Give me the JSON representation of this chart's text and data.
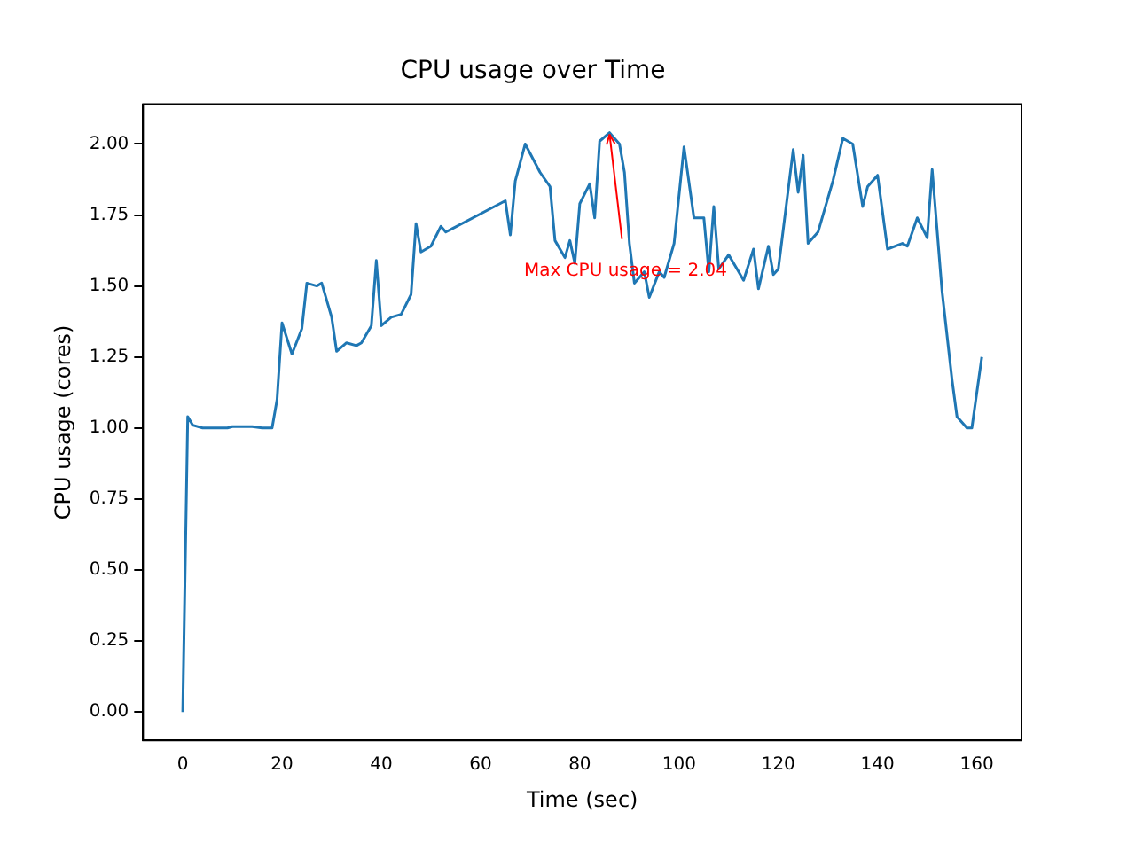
{
  "chart_data": {
    "type": "line",
    "title": "CPU usage over Time",
    "xlabel": "Time (sec)",
    "ylabel": "CPU usage (cores)",
    "x": [
      0,
      1,
      2,
      4,
      8,
      9,
      10,
      14,
      16,
      18,
      19,
      20,
      22,
      24,
      25,
      27,
      28,
      30,
      31,
      33,
      35,
      36,
      38,
      39,
      40,
      42,
      44,
      46,
      47,
      48,
      50,
      52,
      53,
      65,
      66,
      67,
      69,
      72,
      74,
      75,
      77,
      78,
      79,
      80,
      82,
      83,
      84,
      86,
      88,
      89,
      90,
      91,
      93,
      94,
      96,
      97,
      99,
      101,
      103,
      105,
      106,
      107,
      108,
      110,
      112,
      113,
      115,
      116,
      118,
      119,
      120,
      123,
      124,
      125,
      126,
      128,
      131,
      133,
      135,
      137,
      138,
      140,
      142,
      145,
      146,
      148,
      150,
      151,
      153,
      155,
      156,
      158,
      159,
      161
    ],
    "series": [
      {
        "color": "#1f77b4",
        "values": [
          0,
          1.04,
          1.01,
          1.0,
          1.0,
          1.0,
          1.005,
          1.005,
          1.0,
          1.0,
          1.1,
          1.37,
          1.26,
          1.35,
          1.51,
          1.5,
          1.51,
          1.39,
          1.27,
          1.3,
          1.29,
          1.3,
          1.36,
          1.59,
          1.36,
          1.39,
          1.4,
          1.47,
          1.72,
          1.62,
          1.64,
          1.71,
          1.69,
          1.8,
          1.68,
          1.87,
          2.0,
          1.9,
          1.85,
          1.66,
          1.6,
          1.66,
          1.58,
          1.79,
          1.86,
          1.74,
          2.01,
          2.04,
          2.0,
          1.9,
          1.65,
          1.51,
          1.55,
          1.46,
          1.55,
          1.53,
          1.65,
          1.99,
          1.74,
          1.74,
          1.55,
          1.78,
          1.56,
          1.61,
          1.55,
          1.52,
          1.63,
          1.49,
          1.64,
          1.54,
          1.56,
          1.98,
          1.83,
          1.96,
          1.65,
          1.69,
          1.87,
          2.02,
          2.0,
          1.78,
          1.85,
          1.89,
          1.63,
          1.65,
          1.64,
          1.74,
          1.67,
          1.91,
          1.48,
          1.17,
          1.04,
          1.0,
          1.0,
          1.25
        ]
      }
    ],
    "xlim": [
      -8,
      169
    ],
    "xticks": [
      0,
      20,
      40,
      60,
      80,
      100,
      120,
      140,
      160
    ],
    "ylim": [
      -0.1,
      2.14
    ],
    "yticks": [
      {
        "value": 0,
        "label": "0.00"
      },
      {
        "value": 0.25,
        "label": "0.25"
      },
      {
        "value": 0.5,
        "label": "0.50"
      },
      {
        "value": 0.75,
        "label": "0.75"
      },
      {
        "value": 1,
        "label": "1.00"
      },
      {
        "value": 1.25,
        "label": "1.25"
      },
      {
        "value": 1.5,
        "label": "1.50"
      },
      {
        "value": 1.75,
        "label": "1.75"
      },
      {
        "value": 2,
        "label": "2.00"
      }
    ],
    "annotations": [
      {
        "text": "Max CPU usage = 2.04",
        "x": 86,
        "y": 2.04
      }
    ],
    "grid": false,
    "legend": false,
    "marker": "none",
    "line_style": "solid"
  }
}
